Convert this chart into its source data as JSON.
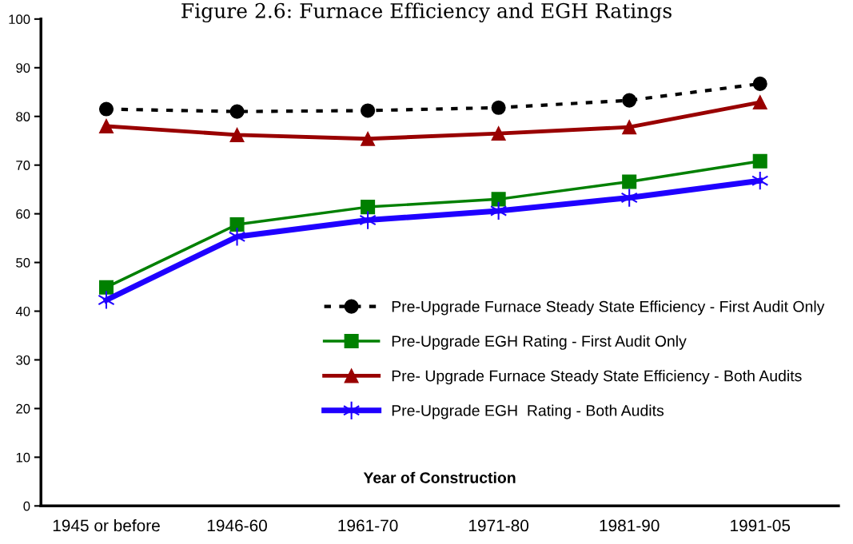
{
  "chart_data": {
    "type": "line",
    "title": "Figure 2.6: Furnace Efficiency and EGH Ratings",
    "xlabel": "Year of Construction",
    "categories": [
      "1945 or before",
      "1946-60",
      "1961-70",
      "1971-80",
      "1981-90",
      "1991-05"
    ],
    "ylim": [
      0,
      100
    ],
    "yticks": [
      0,
      10,
      20,
      30,
      40,
      50,
      60,
      70,
      80,
      90,
      100
    ],
    "grid": false,
    "legend": "right",
    "series": [
      {
        "name": "Pre-Upgrade Furnace Steady State Efficiency - First Audit Only",
        "color": "#000000",
        "marker": "circle",
        "line_style": "dashed",
        "values": [
          81.5,
          81.0,
          81.2,
          81.8,
          83.3,
          86.7
        ]
      },
      {
        "name": "Pre-Upgrade EGH Rating - First Audit Only",
        "color": "#008000",
        "marker": "square",
        "line_style": "solid",
        "values": [
          44.9,
          57.8,
          61.4,
          63.0,
          66.6,
          70.8
        ]
      },
      {
        "name": "Pre- Upgrade Furnace Steady State Efficiency - Both Audits",
        "color": "#990000",
        "marker": "triangle",
        "line_style": "solid",
        "values": [
          78.0,
          76.2,
          75.4,
          76.5,
          77.8,
          82.9
        ]
      },
      {
        "name": "Pre-Upgrade EGH  Rating - Both Audits",
        "color": "#1f00ff",
        "marker": "cross",
        "line_style": "solid",
        "values": [
          42.3,
          55.3,
          58.7,
          60.6,
          63.3,
          66.8
        ]
      }
    ]
  }
}
